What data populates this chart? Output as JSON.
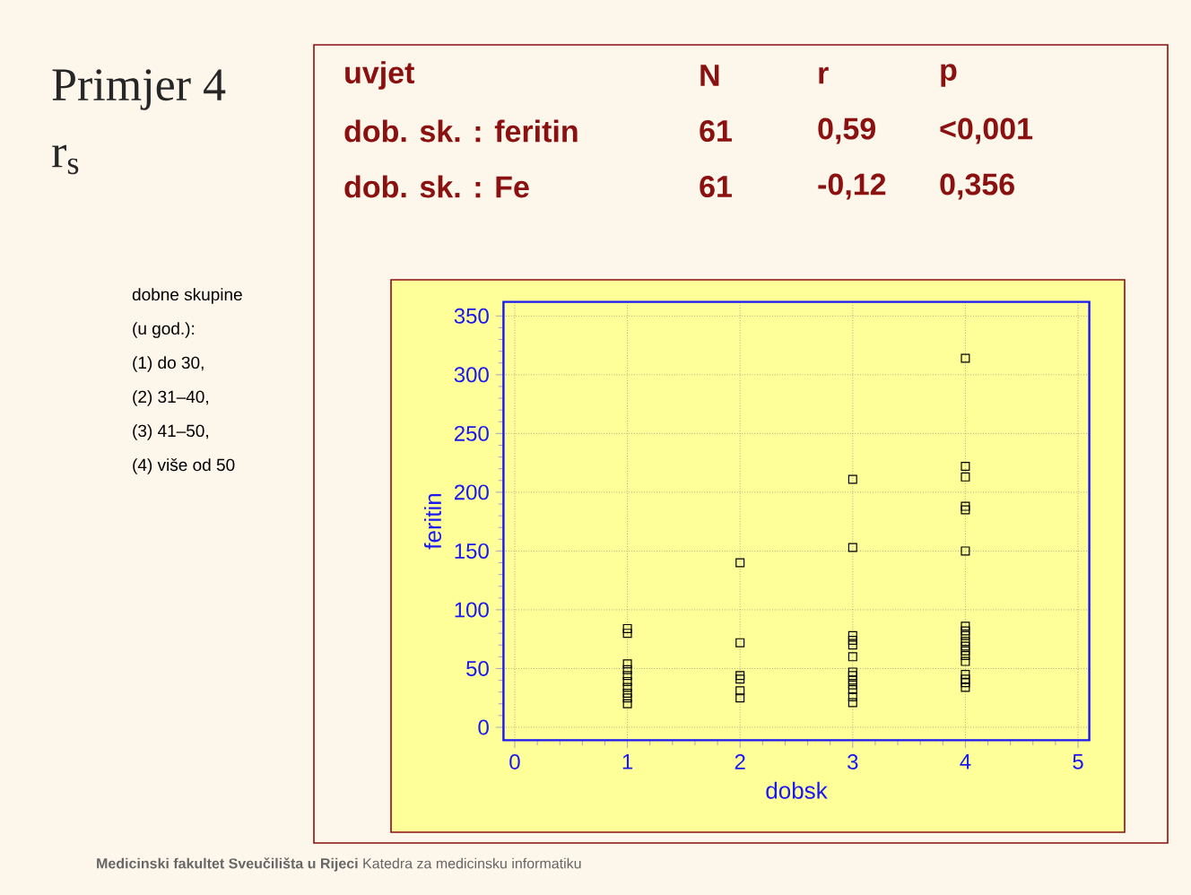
{
  "chart_data": {
    "type": "scatter",
    "title": "Primjer 4",
    "subtitle": "r$_{s}$",
    "xlabel": "dobsk",
    "ylabel": "feritin",
    "x": [
      1,
      1,
      1,
      1,
      1,
      1,
      1,
      1,
      1,
      1,
      2,
      2,
      2,
      2,
      2,
      2,
      3,
      3,
      3,
      3,
      3,
      3,
      3,
      3,
      3,
      3,
      3,
      3,
      3,
      4,
      4,
      4,
      4,
      4,
      4,
      4,
      4,
      4,
      4,
      4,
      4,
      4,
      4,
      4,
      4,
      4,
      4
    ],
    "values": [
      84,
      80,
      54,
      49,
      44,
      39,
      34,
      29,
      25,
      20,
      140,
      72,
      44,
      41,
      31,
      25,
      211,
      153,
      78,
      74,
      70,
      60,
      47,
      44,
      40,
      36,
      32,
      26,
      21,
      314,
      222,
      213,
      188,
      185,
      150,
      86,
      82,
      78,
      73,
      69,
      65,
      61,
      56,
      45,
      41,
      38,
      34
    ],
    "color": "#000000",
    "marker": "square",
    "grid": true,
    "xlim": [
      -0.1,
      5.1
    ],
    "ylim": [
      -11,
      362
    ],
    "xticks": [
      0,
      1,
      2,
      3,
      4,
      5
    ],
    "yticks": [
      0,
      50,
      100,
      150,
      200,
      250,
      300,
      350
    ],
    "annotations": [
      "uvjet",
      "N",
      "r",
      "p",
      "dob. sk. : feritin",
      "61",
      "0,59",
      "<0,001",
      "dob. sk. : Fe",
      "61",
      "-0,12",
      "0,356",
      "dobne skupine",
      "(u god.):",
      "(1)  do 30,",
      "(2)  31–40,",
      "(3) 41–50,",
      "(4) više od 50",
      "**Medicinski fakultet Sveučilišta u Rijeci** Katedra za medicinsku informatiku"
    ]
  }
}
